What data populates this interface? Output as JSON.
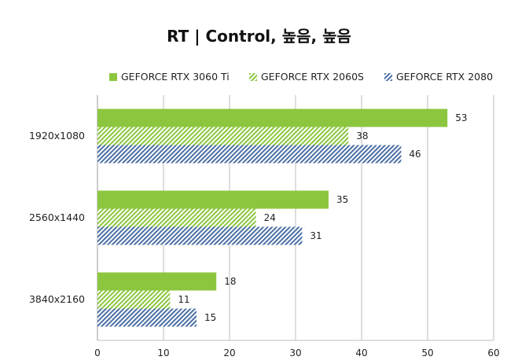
{
  "chart_data": {
    "type": "bar",
    "orientation": "horizontal",
    "title": "RT | Control, 높음, 높음",
    "categories": [
      "1920x1080",
      "2560x1440",
      "3840x2160"
    ],
    "series": [
      {
        "name": "GEFORCE RTX 3060 Ti",
        "values": [
          53,
          35,
          18
        ],
        "color": "#8cc63f",
        "pattern": "solid"
      },
      {
        "name": "GEFORCE RTX 2060S",
        "values": [
          38,
          24,
          11
        ],
        "color": "#8cc63f",
        "pattern": "diagonal-hatch"
      },
      {
        "name": "GEFORCE RTX 2080",
        "values": [
          46,
          31,
          15
        ],
        "color": "#4a6fa5",
        "pattern": "diagonal-hatch"
      }
    ],
    "xlim": [
      0,
      60
    ],
    "xticks": [
      0,
      10,
      20,
      30,
      40,
      50,
      60
    ],
    "grid": true,
    "legend_position": "top",
    "data_labels": true
  }
}
